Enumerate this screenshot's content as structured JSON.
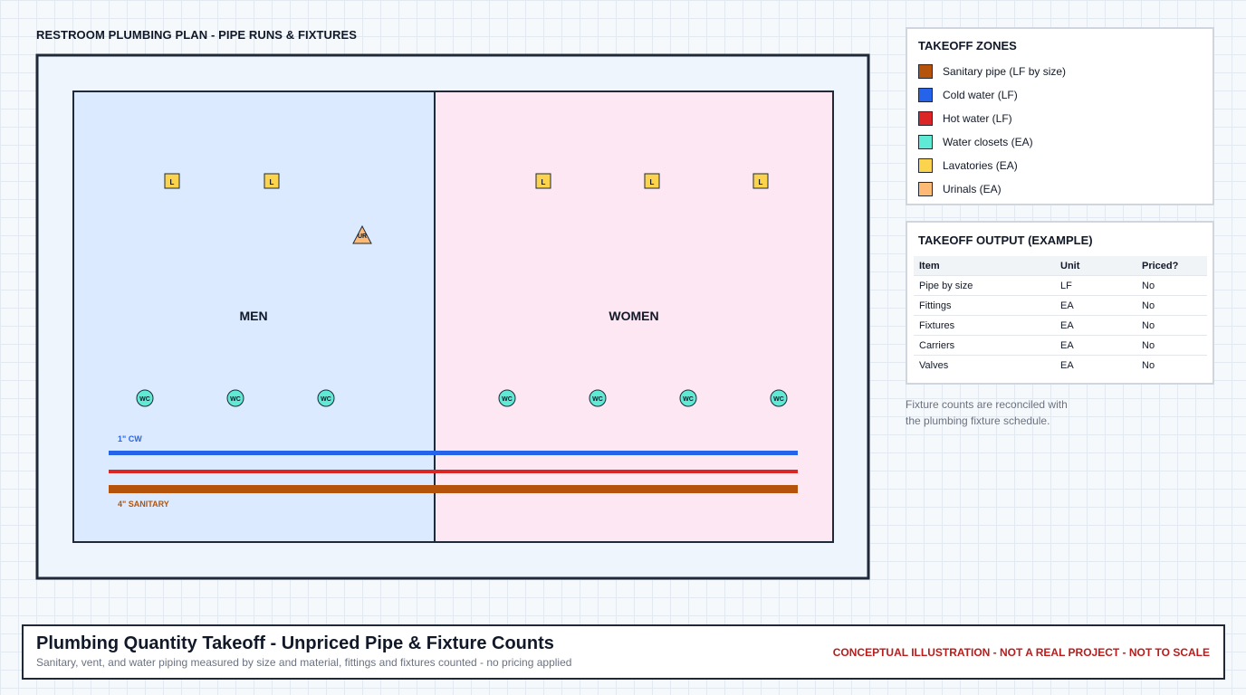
{
  "plan": {
    "title": "RESTROOM PLUMBING PLAN - PIPE RUNS & FIXTURES",
    "rooms": [
      {
        "name": "MEN",
        "fill": "#dbeafe"
      },
      {
        "name": "WOMEN",
        "fill": "#fce7f3"
      }
    ],
    "fixture_labels": {
      "lavatory": "L",
      "urinal": "UR",
      "water_closet": "WC"
    },
    "pipes": {
      "cold_water_label": "1\" CW",
      "sanitary_label": "4\" SANITARY"
    }
  },
  "legend": {
    "title": "TAKEOFF ZONES",
    "items": [
      {
        "label": "Sanitary pipe (LF by size)",
        "color": "#b45309"
      },
      {
        "label": "Cold water (LF)",
        "color": "#2563eb"
      },
      {
        "label": "Hot water (LF)",
        "color": "#dc2626"
      },
      {
        "label": "Water closets (EA)",
        "color": "#5eead4"
      },
      {
        "label": "Lavatories (EA)",
        "color": "#fcd34d"
      },
      {
        "label": "Urinals (EA)",
        "color": "#fdba74"
      }
    ]
  },
  "output": {
    "title": "TAKEOFF OUTPUT (EXAMPLE)",
    "headers": [
      "Item",
      "Unit",
      "Priced?"
    ],
    "rows": [
      [
        "Pipe by size",
        "LF",
        "No"
      ],
      [
        "Fittings",
        "EA",
        "No"
      ],
      [
        "Fixtures",
        "EA",
        "No"
      ],
      [
        "Carriers",
        "EA",
        "No"
      ],
      [
        "Valves",
        "EA",
        "No"
      ]
    ]
  },
  "note": {
    "line1": "Fixture counts are reconciled with",
    "line2": "the plumbing fixture schedule."
  },
  "footer": {
    "title": "Plumbing Quantity Takeoff - Unpriced Pipe & Fixture Counts",
    "subtitle": "Sanitary, vent, and water piping measured by size and material, fittings and fixtures counted - no pricing applied",
    "warning": "CONCEPTUAL ILLUSTRATION - NOT A REAL PROJECT - NOT TO SCALE"
  }
}
